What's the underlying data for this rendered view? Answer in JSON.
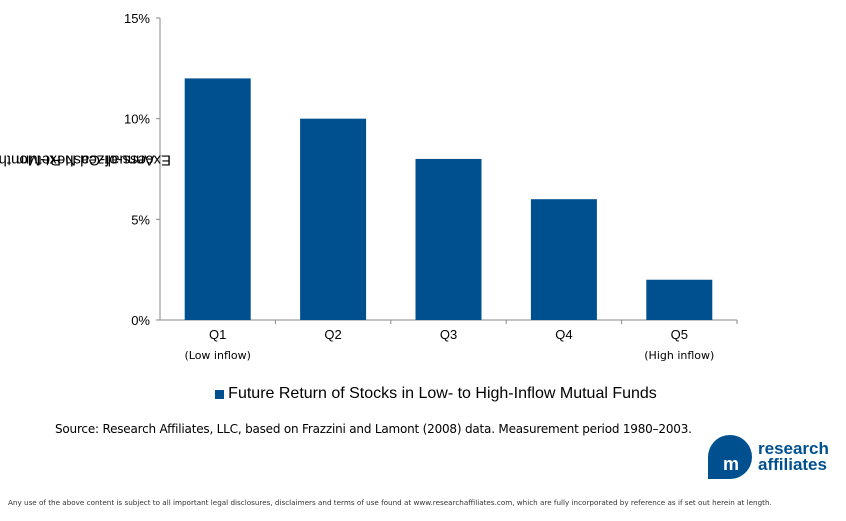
{
  "chart_data": {
    "type": "bar",
    "categories": [
      "Q1",
      "Q2",
      "Q3",
      "Q4",
      "Q5"
    ],
    "category_sublabels": [
      "(Low inflow)",
      "",
      "",
      "",
      "(High inflow)"
    ],
    "values": [
      12,
      10,
      8,
      6,
      2
    ],
    "series": [
      {
        "name": "Future Return of Stocks in Low- to High-Inflow Mutual Funds",
        "values": [
          12,
          10,
          8,
          6,
          2
        ]
      }
    ],
    "ylabel_lines": [
      "Annualized Next-Month",
      "Excess-of-Cash Return"
    ],
    "yticks": [
      0,
      5,
      10,
      15
    ],
    "ytick_labels": [
      "0%",
      "5%",
      "10%",
      "15%"
    ],
    "ylim": [
      0,
      15
    ],
    "grid": false,
    "legend_position": "bottom",
    "bar_color": "#00508f"
  },
  "source": "Source: Research Affiliates, LLC, based on Frazzini and Lamont (2008) data. Measurement period 1980–2003.",
  "logo": {
    "line1": "research",
    "line2": "affiliates",
    "mark": "m"
  },
  "disclaimer": "Any use of the above content is subject to all important legal disclosures, disclaimers and terms of use found at www.researchaffiliates.com, which are fully incorporated by reference as if set out herein at length."
}
